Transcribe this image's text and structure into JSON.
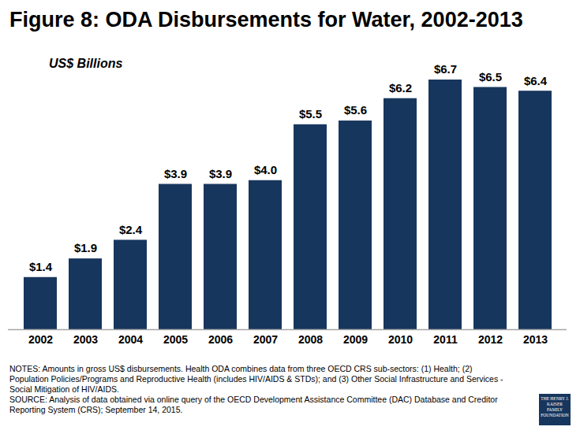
{
  "chart_data": {
    "type": "bar",
    "title": "Figure 8: ODA Disbursements for Water, 2002-2013",
    "subtitle": "US$ Billions",
    "categories": [
      "2002",
      "2003",
      "2004",
      "2005",
      "2006",
      "2007",
      "2008",
      "2009",
      "2010",
      "2011",
      "2012",
      "2013"
    ],
    "values": [
      1.4,
      1.9,
      2.4,
      3.9,
      3.9,
      4.0,
      5.5,
      5.6,
      6.2,
      6.7,
      6.5,
      6.4
    ],
    "value_labels": [
      "$1.4",
      "$1.9",
      "$2.4",
      "$3.9",
      "$3.9",
      "$4.0",
      "$5.5",
      "$5.6",
      "$6.2",
      "$6.7",
      "$6.5",
      "$6.4"
    ],
    "color": "#17365d",
    "ylim": [
      0,
      6.7
    ],
    "data_labels": true,
    "tick_labels": "x",
    "grid": false,
    "notes": "NOTES: Amounts in gross US$ disbursements. Health ODA combines data from three OECD CRS sub-sectors: (1) Health; (2) Population Policies/Programs and Reproductive Health (includes HIV/AIDS & STDs); and (3) Other Social Infrastructure and Services - Social Mitigation of HIV/AIDS.",
    "source": "SOURCE: Analysis of data obtained via online query of the OECD Development Assistance Committee (DAC) Database and Creditor Reporting System (CRS); September 14, 2015.",
    "logo": "THE HENRY J. KAISER FAMILY FOUNDATION"
  }
}
